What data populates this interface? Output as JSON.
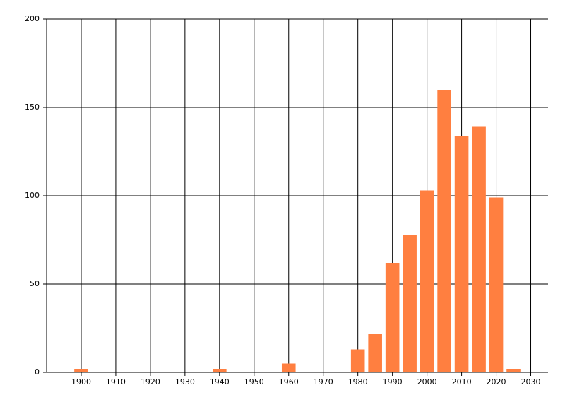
{
  "chart_data": {
    "type": "bar",
    "x": [
      1900,
      1940,
      1960,
      1980,
      1985,
      1990,
      1995,
      2000,
      2005,
      2010,
      2015,
      2020,
      2025
    ],
    "values": [
      2,
      2,
      5,
      13,
      22,
      62,
      78,
      103,
      160,
      134,
      139,
      99,
      2
    ],
    "color": "#ff7f40",
    "xlim": [
      1890,
      2035
    ],
    "xticks": [
      1900,
      1910,
      1920,
      1930,
      1940,
      1950,
      1960,
      1970,
      1980,
      1990,
      2000,
      2010,
      2020,
      2030
    ],
    "ylim": [
      0,
      200
    ],
    "yticks": [
      0,
      50,
      100,
      150,
      200
    ],
    "grid": true
  }
}
